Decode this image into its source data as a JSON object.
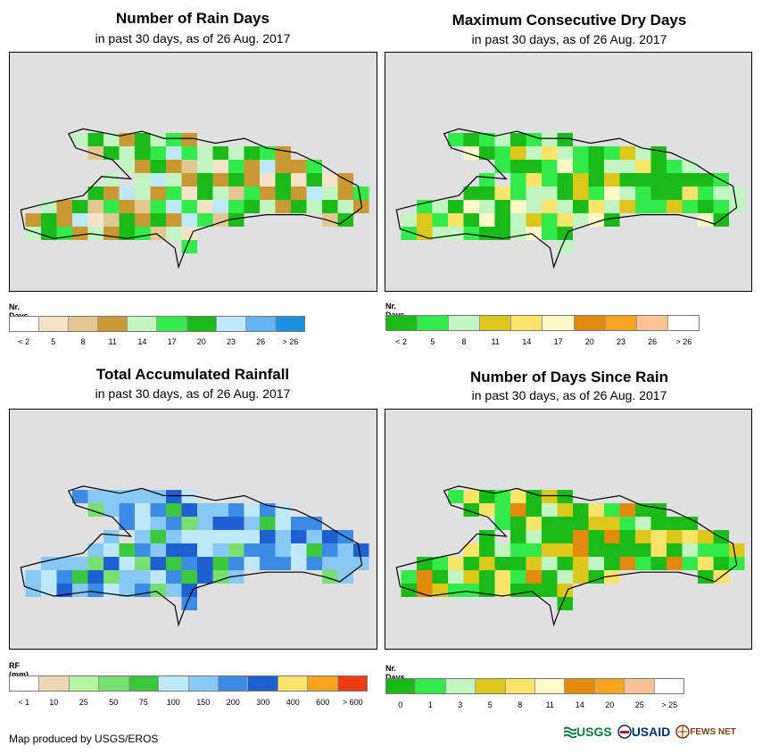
{
  "panels": [
    {
      "id": "rain_days",
      "title": "Number of Rain Days",
      "subtitle": "in past 30 days, as of 26 Aug. 2017",
      "legend": {
        "title": "Nr. Days",
        "colors": [
          "#ffffff",
          "#f5e3c7",
          "#e2c790",
          "#c99a33",
          "#c3f5c3",
          "#33ea4b",
          "#19bb19",
          "#bfe8f8",
          "#64b4f5",
          "#1e90e0"
        ],
        "labels": [
          "< 2",
          "5",
          "8",
          "11",
          "14",
          "17",
          "20",
          "23",
          "26",
          "> 26"
        ]
      }
    },
    {
      "id": "dry_days",
      "title": "Maximum Consecutive Dry Days",
      "subtitle": "in past 30 days, as of 26 Aug. 2017",
      "legend": {
        "title": "Nr. Days",
        "colors": [
          "#19bb19",
          "#33ea4b",
          "#c3f5c3",
          "#dcc81c",
          "#fbe46a",
          "#fff9c8",
          "#e28a0c",
          "#f7a51e",
          "#fbc395",
          "#ffffff"
        ],
        "labels": [
          "< 2",
          "5",
          "8",
          "11",
          "14",
          "17",
          "20",
          "23",
          "26",
          "> 26"
        ]
      }
    },
    {
      "id": "rainfall",
      "title": "Total Accumulated Rainfall",
      "subtitle": "in past 30 days, as of 26 Aug. 2017",
      "legend": {
        "title": "RF (mm)",
        "colors": [
          "#ffffff",
          "#ecd8b4",
          "#b4f5a0",
          "#78e06e",
          "#3cc83c",
          "#bfe8f8",
          "#87c8f5",
          "#3c8ce6",
          "#1e5fd2",
          "#fbe46a",
          "#f7a51e",
          "#f03c14"
        ],
        "labels": [
          "< 1",
          "10",
          "25",
          "50",
          "75",
          "100",
          "150",
          "200",
          "300",
          "400",
          "600",
          "> 600"
        ]
      }
    },
    {
      "id": "since_rain",
      "title": "Number of Days Since Rain",
      "subtitle": "in past 30 days, as of 26 Aug. 2017",
      "legend": {
        "title": "Nr. Days",
        "colors": [
          "#19bb19",
          "#33ea4b",
          "#c3f5c3",
          "#dcc81c",
          "#fbe46a",
          "#fff9c8",
          "#e28a0c",
          "#f7a51e",
          "#fbc395",
          "#ffffff"
        ],
        "labels": [
          "0",
          "1",
          "3",
          "5",
          "8",
          "11",
          "14",
          "20",
          "25",
          "> 25"
        ]
      }
    }
  ],
  "footer": "Map produced by USGS/EROS",
  "logos": {
    "usgs": "USGS",
    "usaid": "USAID",
    "fews": "FEWS NET"
  }
}
